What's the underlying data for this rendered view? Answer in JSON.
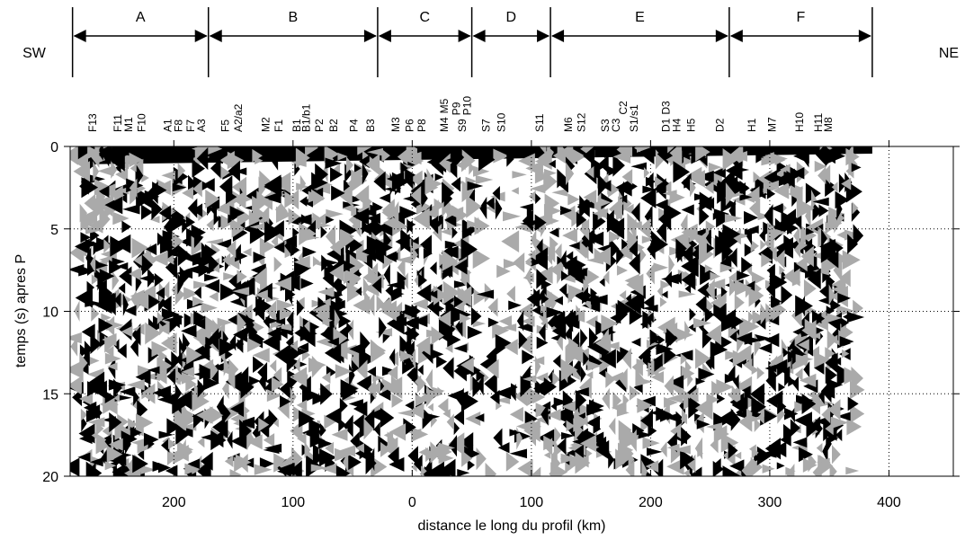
{
  "chart_data": {
    "type": "seismic-section",
    "xlabel": "distance le long du profil   (km)",
    "ylabel": "temps (s) apres P",
    "left_label": "SW",
    "right_label": "NE",
    "xlim": [
      -287,
      454
    ],
    "ylim": [
      0,
      20
    ],
    "xticks": [
      {
        "value": -200,
        "label": "200"
      },
      {
        "value": -100,
        "label": "100"
      },
      0,
      100,
      200,
      300,
      400
    ],
    "yticks": [
      0,
      5,
      10,
      15,
      20
    ],
    "grid": true,
    "segments": {
      "bounds": [
        -285,
        -171,
        -29,
        50,
        116,
        266,
        386
      ],
      "labels": [
        "A",
        "B",
        "C",
        "D",
        "E",
        "F"
      ]
    },
    "stations": {
      "names": [
        "F13",
        "F11",
        "M1",
        "F10",
        "A1",
        "F8",
        "F7",
        "A3",
        "F5",
        "A2/a2",
        "M2",
        "F1",
        "B1",
        "B1/b1",
        "P2",
        "B2",
        "P4",
        "B3",
        "M3",
        "P6",
        "P8",
        "M4",
        "M5",
        "S9",
        "P9",
        "P10",
        "S7",
        "S10",
        "S11",
        "M6",
        "S12",
        "S3",
        "C3",
        "C2",
        "S1/s1",
        "D1",
        "D3",
        "H4",
        "H5",
        "D2",
        "H1",
        "M7",
        "H10",
        "H11",
        "M8"
      ],
      "x": [
        -268,
        -247,
        -238,
        -227,
        -205,
        -196,
        -186,
        -177,
        -157,
        -146,
        -123,
        -112,
        -97,
        -89,
        -78,
        -66,
        -49,
        -35,
        -14,
        -2,
        8,
        27,
        27,
        42,
        37,
        46,
        62,
        75,
        107,
        131,
        142,
        162,
        171,
        177,
        186,
        213,
        213,
        222,
        234,
        258,
        285,
        302,
        325,
        341,
        349
      ]
    }
  }
}
